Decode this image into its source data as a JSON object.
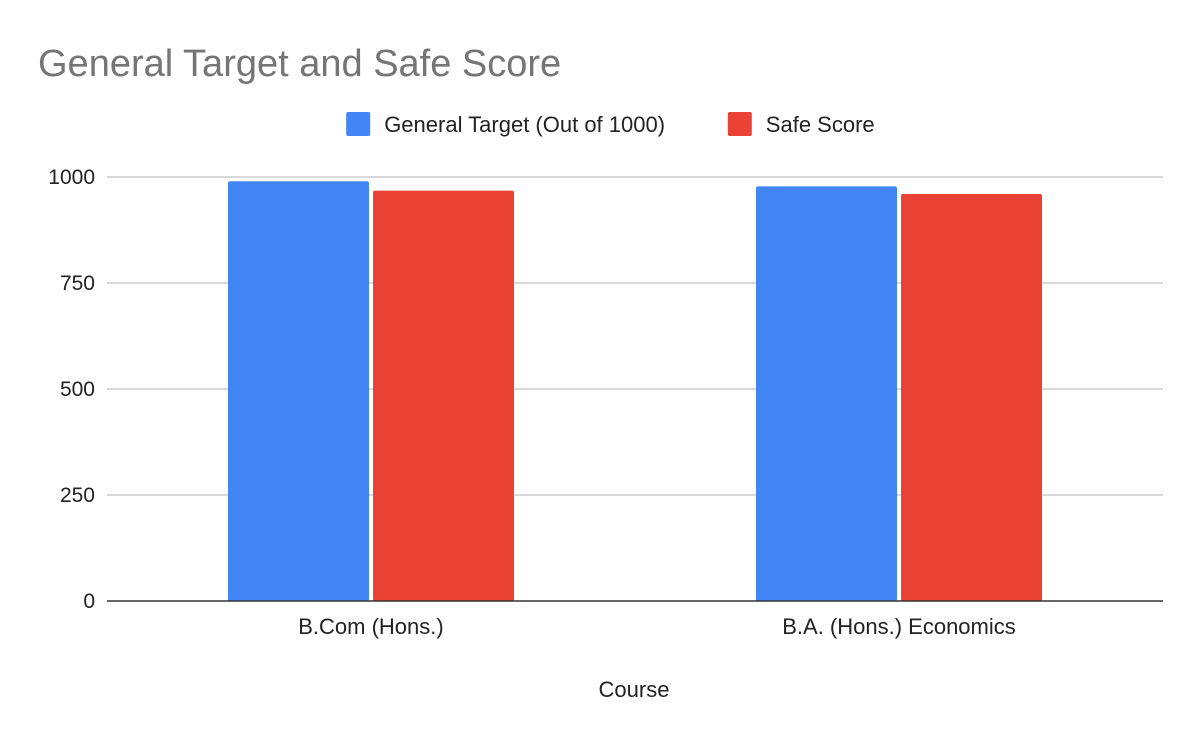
{
  "chart_data": {
    "type": "bar",
    "title": "General Target and Safe Score",
    "xlabel": "Course",
    "ylabel": "",
    "categories": [
      "B.Com (Hons.)",
      "B.A. (Hons.) Economics"
    ],
    "series": [
      {
        "name": "General Target (Out of 1000)",
        "color": "#4285f4",
        "values": [
          990,
          978
        ]
      },
      {
        "name": "Safe Score",
        "color": "#ea4335",
        "values": [
          968,
          960
        ]
      }
    ],
    "ylim": [
      0,
      1000
    ],
    "yticks": [
      0,
      250,
      500,
      750,
      1000
    ],
    "grid": true,
    "legend_position": "top"
  }
}
